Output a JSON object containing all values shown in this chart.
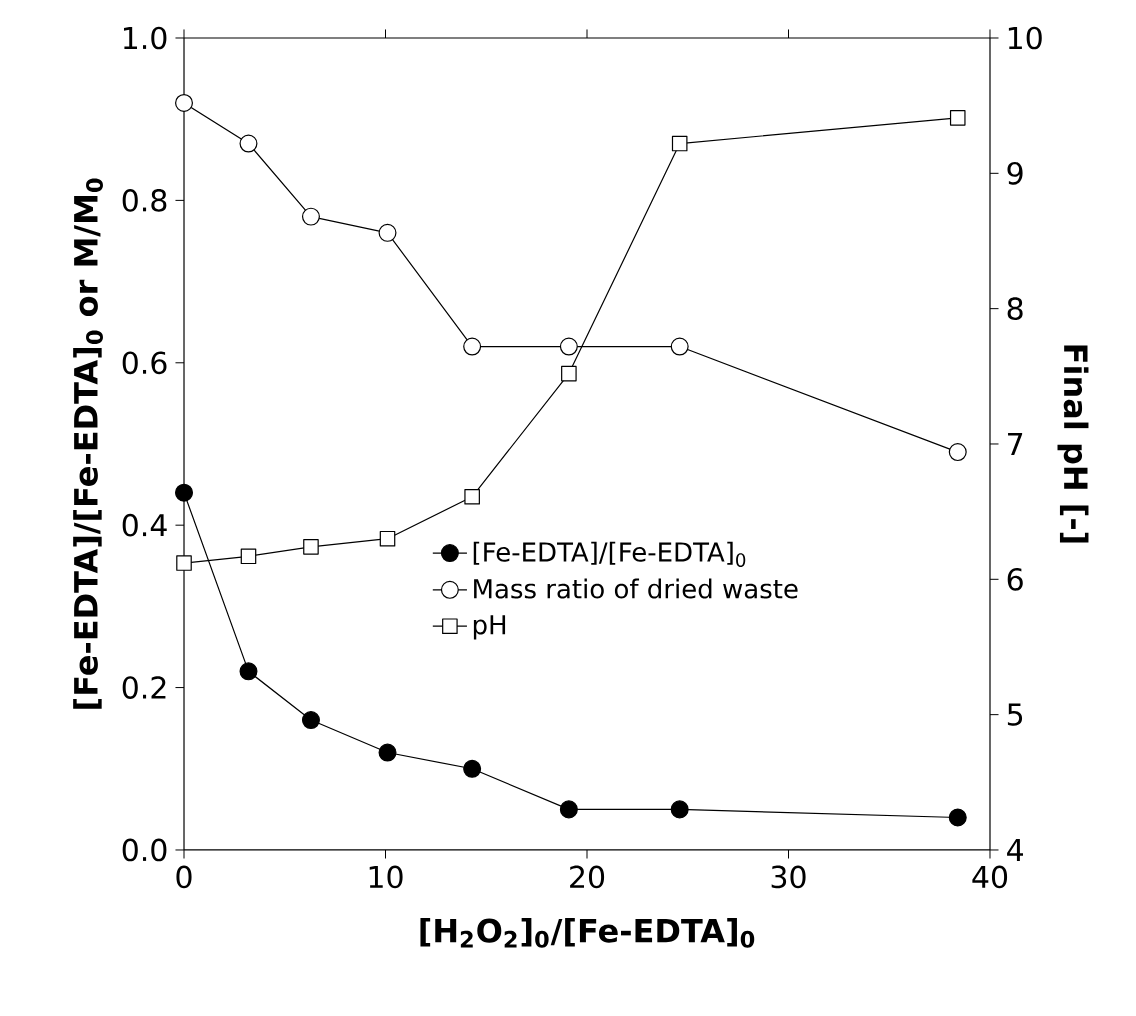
{
  "chart_data": {
    "type": "line",
    "xlabel": "[H$_{2}$O$_{2}$]$_{0}$/[Fe-EDTA]$_{0}$",
    "ylabel": "[Fe-EDTA]/[Fe-EDTA]$_{0}$ or M/M$_{0}$",
    "y2label": "Final pH [-]",
    "x": [
      0,
      3.2,
      6.3,
      10.1,
      14.3,
      19.1,
      24.6,
      38.4
    ],
    "series": [
      {
        "name": "[Fe-EDTA]/[Fe-EDTA]$_{0}$",
        "color": "#000000",
        "marker": "circle",
        "values": [
          0.44,
          0.22,
          0.16,
          0.12,
          0.1,
          0.05,
          0.05,
          0.04
        ]
      },
      {
        "name": "Mass ratio of dried waste",
        "color": "#ffffff",
        "marker": "circle",
        "values": [
          0.92,
          0.87,
          0.78,
          0.76,
          0.62,
          0.62,
          0.62,
          0.49
        ]
      },
      {
        "name": "pH",
        "color": "#ffffff",
        "marker": "square",
        "axis": "y2",
        "values": [
          6.12,
          6.17,
          6.24,
          6.3,
          6.61,
          7.52,
          9.22,
          9.41
        ]
      }
    ],
    "xlim": [
      0,
      40
    ],
    "xticks": [
      0,
      10,
      20,
      30,
      40
    ],
    "ylim": [
      0,
      1
    ],
    "yticks": [
      {
        "value": 0,
        "label": "0.0"
      },
      {
        "value": 0.2,
        "label": "0.2"
      },
      {
        "value": 0.4,
        "label": "0.4"
      },
      {
        "value": 0.6,
        "label": "0.6"
      },
      {
        "value": 0.8,
        "label": "0.8"
      },
      {
        "value": 1,
        "label": "1.0"
      }
    ],
    "y2lim": [
      4,
      10
    ],
    "y2ticks": [
      4,
      5,
      6,
      7,
      8,
      9,
      10
    ],
    "legend": "bottom right",
    "line_style": "solid",
    "grid": false
  }
}
